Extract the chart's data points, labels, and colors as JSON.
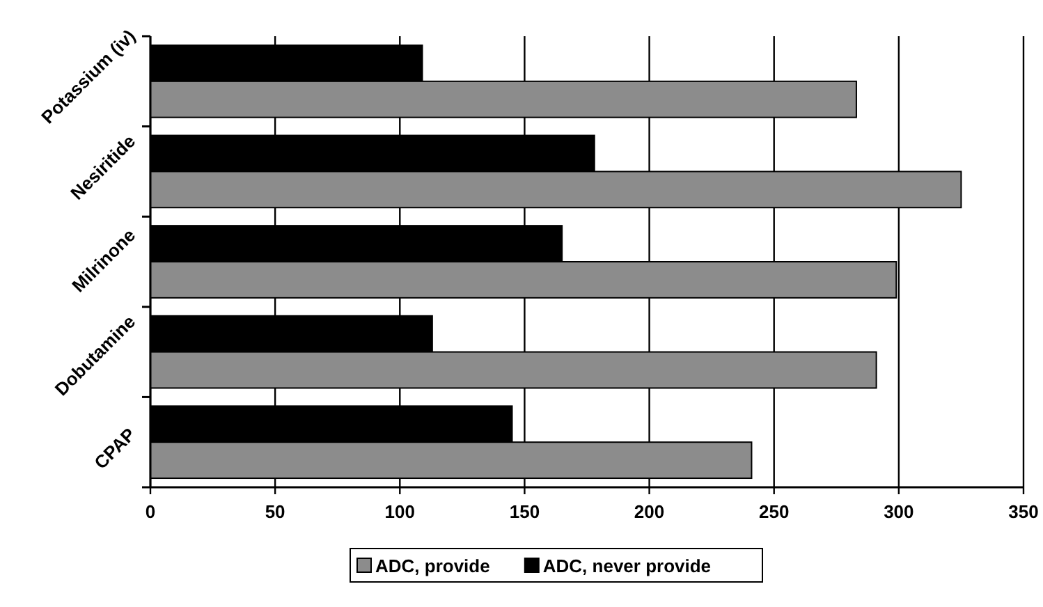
{
  "chart_data": {
    "type": "bar",
    "orientation": "horizontal",
    "categories": [
      "Potassium (iv)",
      "Nesiritide",
      "Milrinone",
      "Dobutamine",
      "CPAP"
    ],
    "series": [
      {
        "name": "ADC, never provide",
        "color": "#000000",
        "values": [
          109,
          178,
          165,
          113,
          145
        ]
      },
      {
        "name": "ADC, provide",
        "color": "#8c8c8c",
        "values": [
          283,
          325,
          299,
          291,
          241
        ]
      }
    ],
    "xlim": [
      0,
      350
    ],
    "xticks": [
      0,
      50,
      100,
      150,
      200,
      250,
      300,
      350
    ],
    "grid": "x",
    "legend": "bottom"
  }
}
